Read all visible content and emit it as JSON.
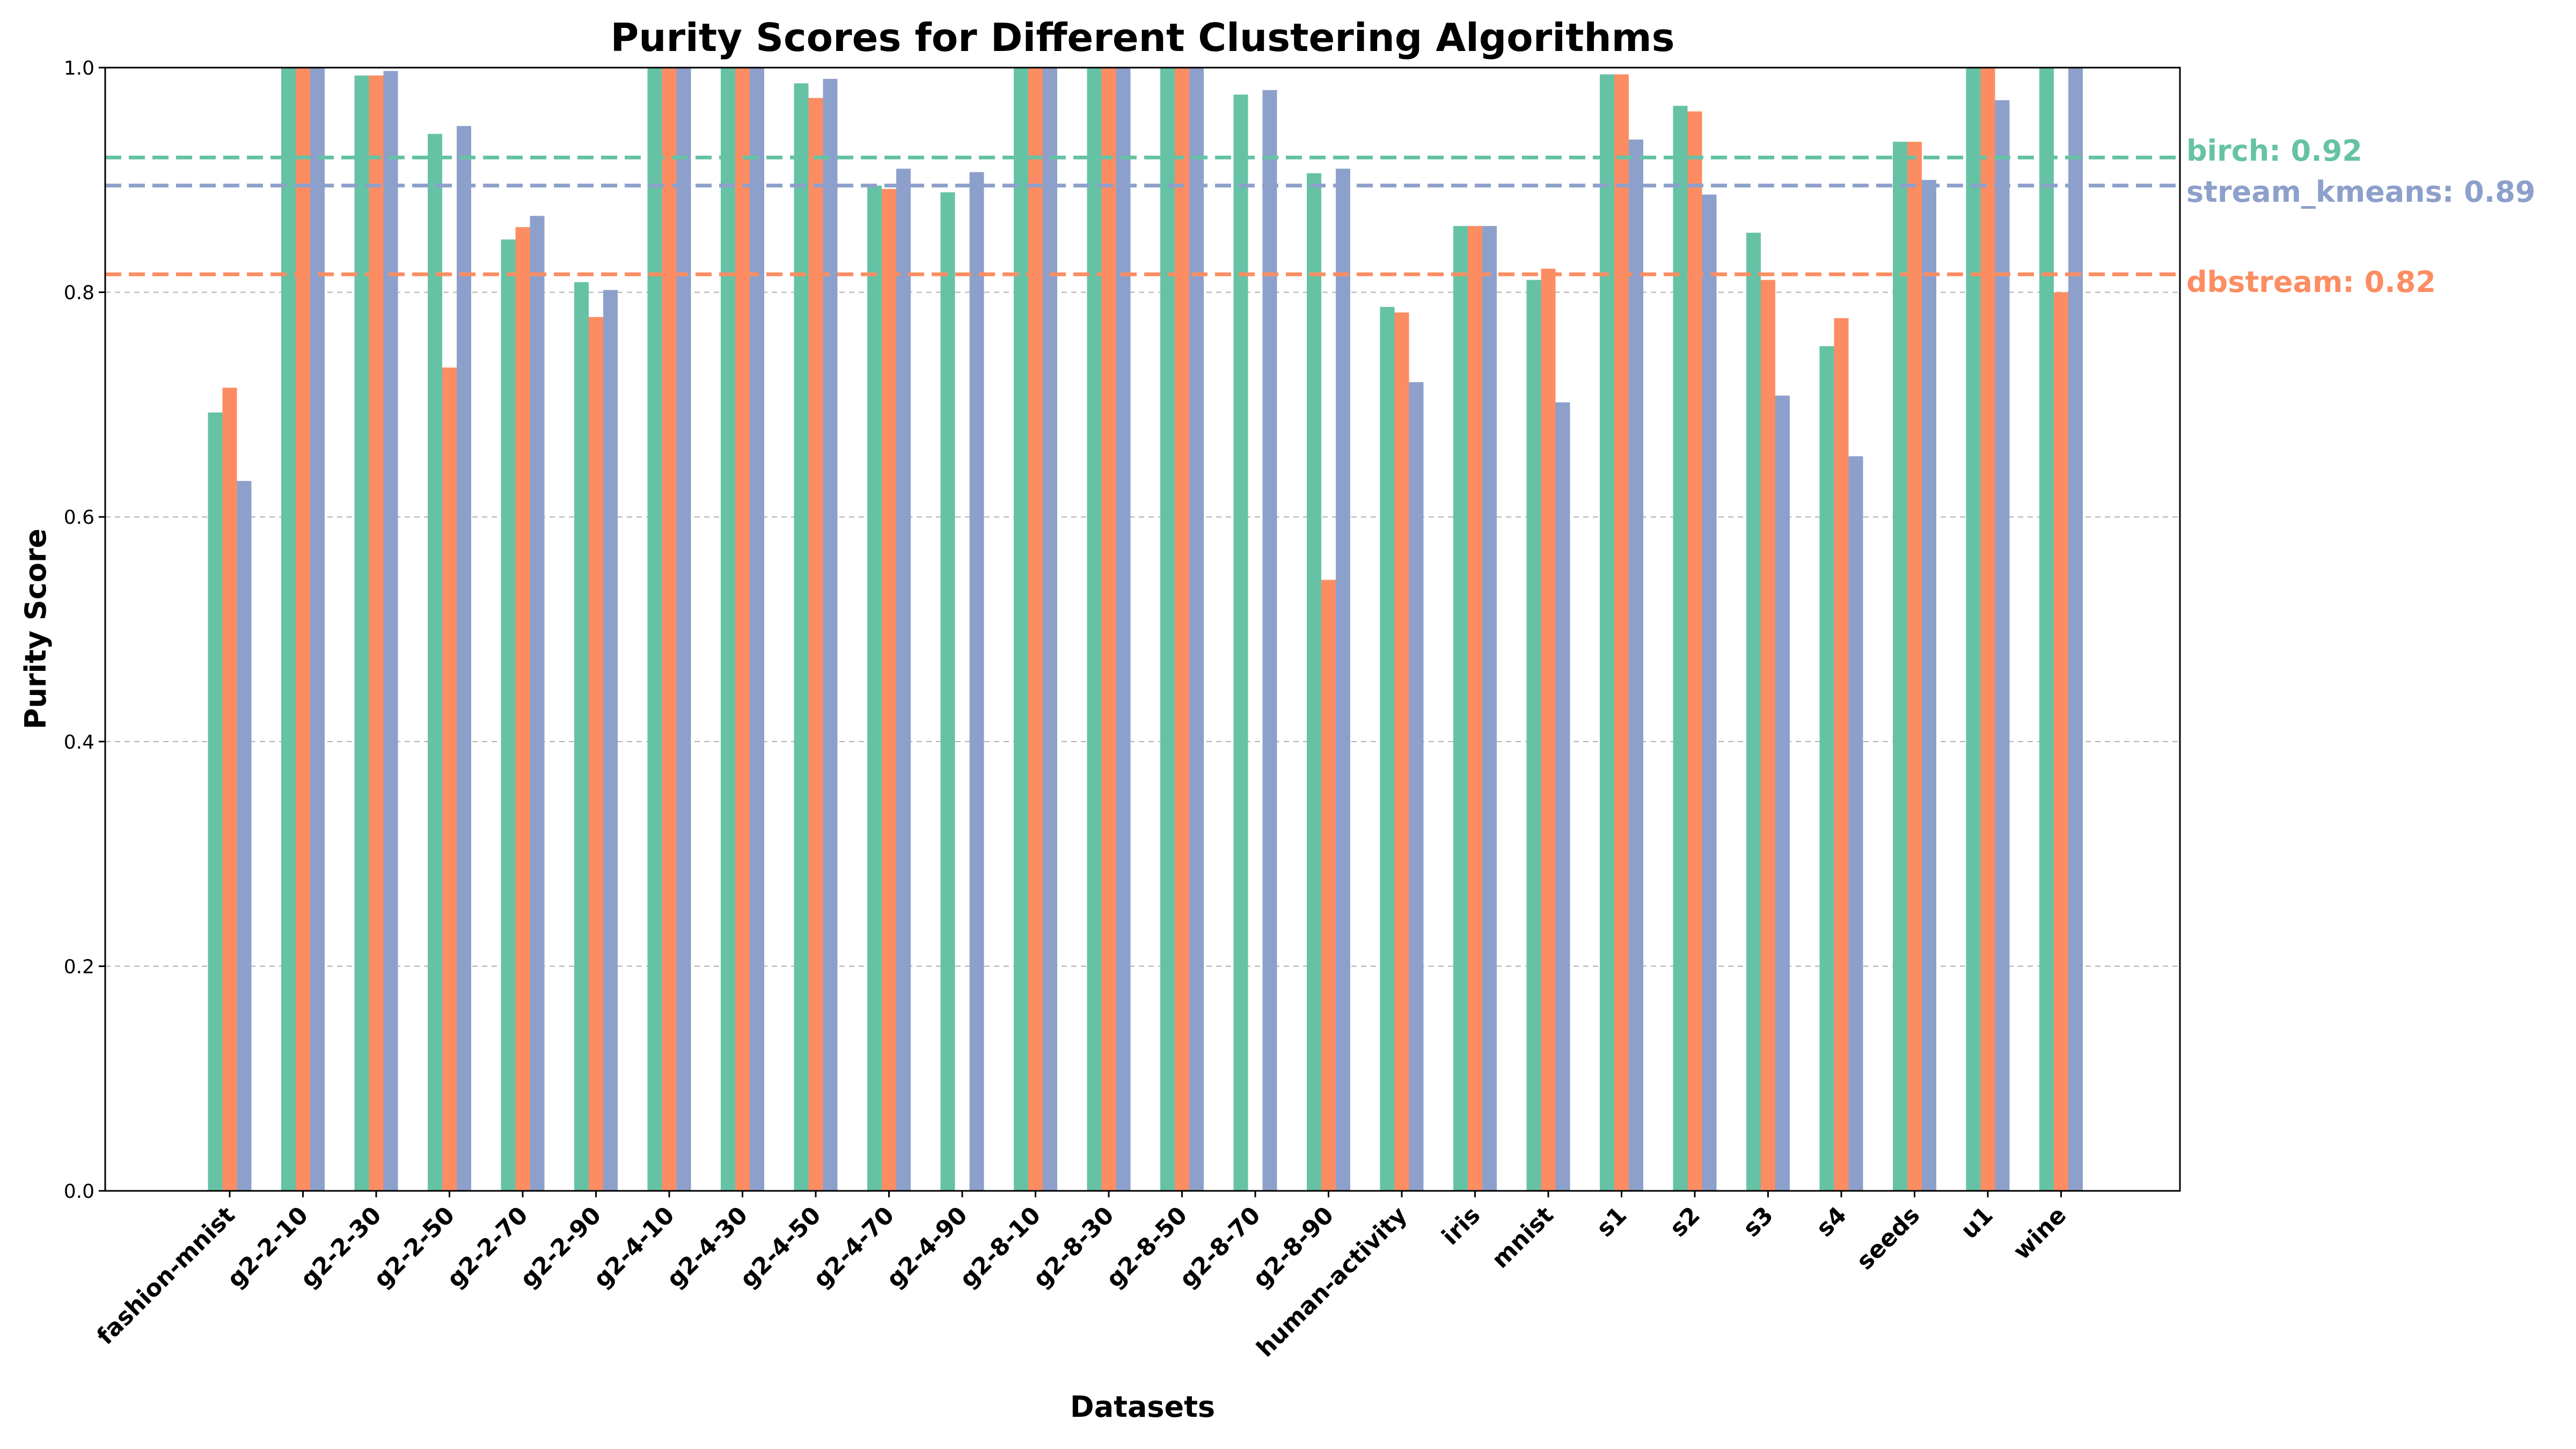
{
  "chart_data": {
    "type": "bar",
    "title": "Purity Scores for Different Clustering Algorithms",
    "xlabel": "Datasets",
    "ylabel": "Purity Score",
    "ylim": [
      0,
      1.0
    ],
    "yticks": [
      "0.0",
      "0.2",
      "0.4",
      "0.6",
      "0.8",
      "1.0"
    ],
    "grid": "y-dashed",
    "categories": [
      "fashion-mnist",
      "g2-2-10",
      "g2-2-30",
      "g2-2-50",
      "g2-2-70",
      "g2-2-90",
      "g2-4-10",
      "g2-4-30",
      "g2-4-50",
      "g2-4-70",
      "g2-4-90",
      "g2-8-10",
      "g2-8-30",
      "g2-8-50",
      "g2-8-70",
      "g2-8-90",
      "human-activity",
      "iris",
      "mnist",
      "s1",
      "s2",
      "s3",
      "s4",
      "seeds",
      "u1",
      "wine"
    ],
    "series": [
      {
        "name": "birch",
        "color": "#66c2a5",
        "values": [
          0.693,
          1.0,
          0.993,
          0.941,
          0.847,
          0.809,
          1.0,
          1.0,
          0.986,
          0.895,
          0.889,
          1.0,
          1.0,
          1.0,
          0.976,
          0.906,
          0.787,
          0.859,
          0.811,
          0.994,
          0.966,
          0.853,
          0.752,
          0.934,
          1.0,
          1.0
        ]
      },
      {
        "name": "dbstream",
        "color": "#fc8d62",
        "values": [
          0.715,
          1.0,
          0.993,
          0.733,
          0.858,
          0.778,
          1.0,
          1.0,
          0.973,
          0.892,
          null,
          1.0,
          1.0,
          1.0,
          null,
          0.544,
          0.782,
          0.859,
          0.821,
          0.994,
          0.961,
          0.811,
          0.777,
          0.934,
          1.0,
          0.8
        ]
      },
      {
        "name": "stream_kmeans",
        "color": "#8da0cb",
        "values": [
          0.632,
          1.0,
          0.997,
          0.948,
          0.868,
          0.802,
          1.0,
          1.0,
          0.99,
          0.91,
          0.907,
          1.0,
          1.0,
          1.0,
          0.98,
          0.91,
          0.72,
          0.859,
          0.702,
          0.936,
          0.887,
          0.708,
          0.654,
          0.9,
          0.971,
          1.0
        ]
      }
    ],
    "reference_lines": [
      {
        "series": "birch",
        "value": 0.92,
        "label": "birch: 0.92",
        "color": "#66c2a5"
      },
      {
        "series": "stream_kmeans",
        "value": 0.895,
        "label": "stream_kmeans: 0.89",
        "color": "#8da0cb"
      },
      {
        "series": "dbstream",
        "value": 0.816,
        "label": "dbstream: 0.82",
        "color": "#fc8d62"
      }
    ]
  }
}
